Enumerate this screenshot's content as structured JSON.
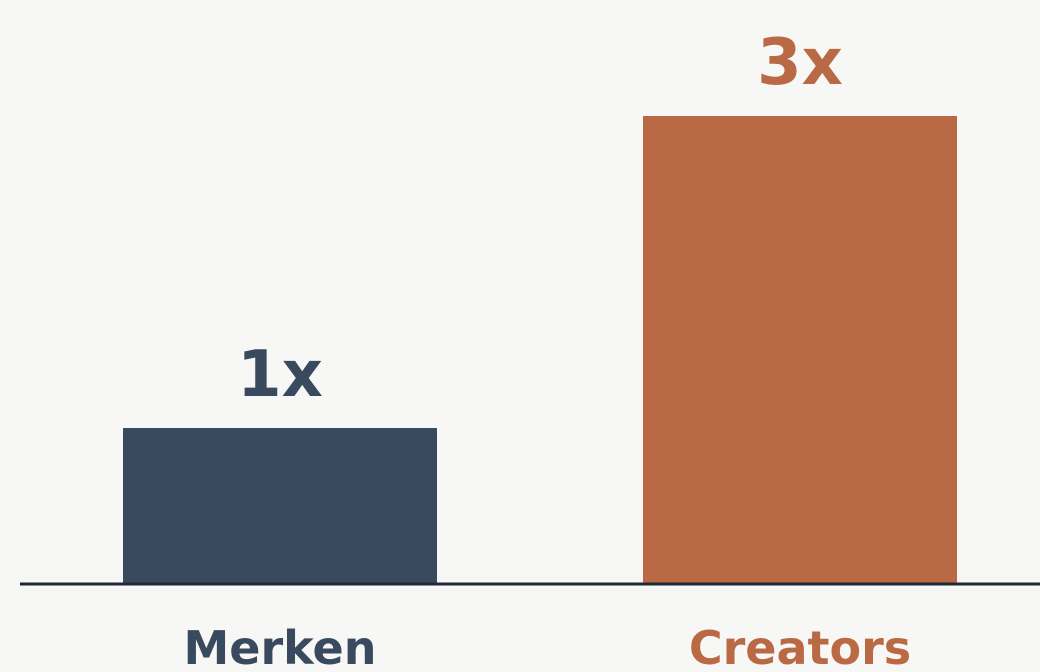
{
  "chart_data": {
    "type": "bar",
    "categories": [
      "Merken",
      "Creators"
    ],
    "values": [
      1,
      3
    ],
    "value_labels": [
      "1x",
      "3x"
    ],
    "title": "",
    "xlabel": "",
    "ylabel": "",
    "ylim": [
      0,
      3
    ],
    "grid": false,
    "legend": "none",
    "colors": [
      "#394a5f",
      "#b96a45"
    ],
    "label_colors": [
      "#394a5f",
      "#b96a45"
    ],
    "baseline_color": "#1f2a36"
  }
}
